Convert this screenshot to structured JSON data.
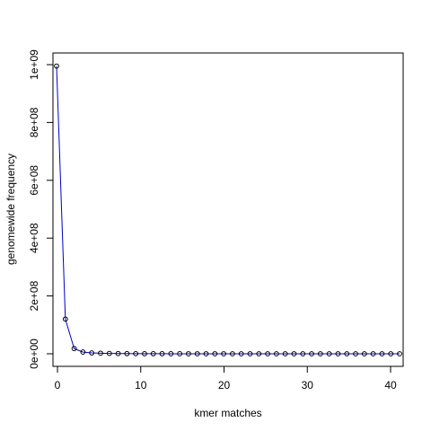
{
  "chart_data": {
    "type": "line",
    "title": "",
    "xlabel": "kmer matches",
    "ylabel": "genomewide frequency",
    "xlim": [
      0,
      41
    ],
    "ylim": [
      0,
      1000000000
    ],
    "grid": false,
    "legend": "none",
    "x_ticks": [
      0,
      10,
      20,
      30,
      40
    ],
    "x_tick_labels": [
      "0",
      "10",
      "20",
      "30",
      "40"
    ],
    "y_ticks": [
      0,
      200000000,
      400000000,
      600000000,
      800000000,
      1000000000
    ],
    "y_tick_labels": [
      "0e+00",
      "2e+08",
      "4e+08",
      "6e+08",
      "8e+08",
      "1e+09"
    ],
    "series": [
      {
        "line_color": "#0000cc",
        "marker_color": "#000000",
        "x": [
          1,
          2,
          3,
          4,
          5,
          6,
          7,
          8,
          9,
          10,
          11,
          12,
          13,
          14,
          15,
          16,
          17,
          18,
          19,
          20,
          21,
          22,
          23,
          24,
          25,
          26,
          27,
          28,
          29,
          30,
          31,
          32,
          33,
          34,
          35,
          36,
          37,
          38,
          39,
          40
        ],
        "y": [
          995000000,
          120000000,
          18000000,
          6000000,
          3000000,
          2000000,
          1200000,
          800000,
          600000,
          400000,
          300000,
          250000,
          200000,
          150000,
          120000,
          100000,
          80000,
          60000,
          50000,
          40000,
          30000,
          25000,
          20000,
          15000,
          12000,
          10000,
          8000,
          6000,
          5000,
          4000,
          3000,
          2500,
          2000,
          1500,
          1200,
          1000,
          800,
          600,
          500,
          400
        ]
      }
    ]
  }
}
